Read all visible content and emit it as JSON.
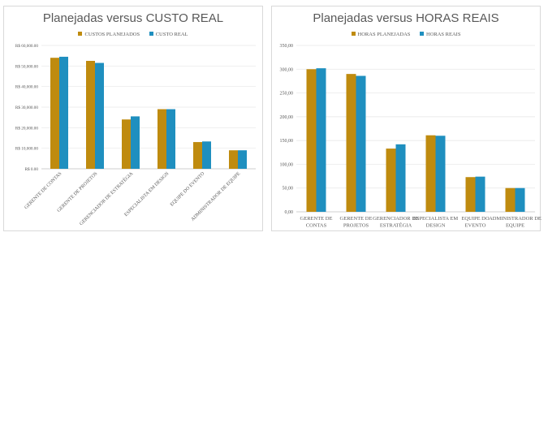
{
  "colors": {
    "planned": "#bf8b0f",
    "actual": "#1f8fbf",
    "grid": "#e6e6e6",
    "axis": "#bfbfbf"
  },
  "chart_data": [
    {
      "type": "bar",
      "title": "Planejadas versus CUSTO REAL",
      "categories": [
        "GERENTE DE CONTAS",
        "GERENTE DE PROJETOS",
        "GERENCIADOR DE ESTRATÉGIA",
        "ESPECIALISTA EM DESIGN",
        "EQUIPE DO EVENTO",
        "ADMINISTRADOR DE EQUIPE"
      ],
      "series": [
        {
          "name": "CUSTOS PLANEJADOS",
          "values": [
            54000,
            52500,
            24000,
            29000,
            13000,
            9000
          ]
        },
        {
          "name": "CUSTO REAL",
          "values": [
            54500,
            51500,
            25500,
            29000,
            13300,
            9000
          ]
        }
      ],
      "yticks": [
        "R$ 0.00",
        "R$ 10,000.00",
        "R$ 20,000.00",
        "R$ 30,000.00",
        "R$ 40,000.00",
        "R$ 50,000.00",
        "R$ 60,000.00"
      ],
      "ylim": [
        0,
        60000
      ],
      "grid": true,
      "legend": "top"
    },
    {
      "type": "bar",
      "title": "Planejadas versus HORAS REAIS",
      "categories": [
        "GERENTE DE CONTAS",
        "GERENTE DE PROJETOS",
        "GERENCIADOR DE ESTRATÉGIA",
        "ESPECIALISTA EM DESIGN",
        "EQUIPE DO EVENTO",
        "ADMINISTRADOR DE EQUIPE"
      ],
      "series": [
        {
          "name": "HORAS PLANEJADAS",
          "values": [
            300,
            290,
            133,
            161,
            73,
            50
          ]
        },
        {
          "name": "HORAS REAIS",
          "values": [
            302,
            286,
            142,
            160,
            74,
            50
          ]
        }
      ],
      "yticks": [
        "0,00",
        "50,00",
        "100,00",
        "150,00",
        "200,00",
        "250,00",
        "300,00",
        "350,00"
      ],
      "ylim": [
        0,
        350
      ],
      "grid": true,
      "legend": "top"
    }
  ]
}
